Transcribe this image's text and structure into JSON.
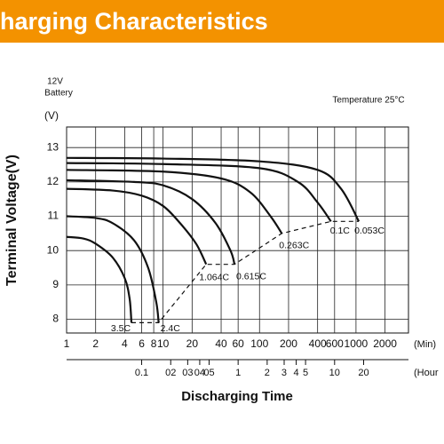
{
  "header": {
    "title": "harging Characteristics"
  },
  "chart_data": {
    "type": "line",
    "unit_label": "(V)",
    "battery_line1": "12V",
    "battery_line2": "Battery",
    "annotation": "Temperature 25°C",
    "y_label": "Terminal Voltage(V)",
    "x_label": "Discharging Time",
    "x_unit": "(Min)",
    "x2_unit": "(Hour",
    "log_x": true,
    "grid": true,
    "color": "#111111",
    "xlim": [
      1,
      3500
    ],
    "ylim": [
      7.6,
      13.6
    ],
    "xticks": [
      1,
      2,
      4,
      6,
      8,
      10,
      20,
      40,
      60,
      100,
      200,
      400,
      600,
      1000,
      2000
    ],
    "yticks": [
      8,
      9,
      10,
      11,
      12,
      13
    ],
    "x2lim": [
      0.016667,
      58.333
    ],
    "x2ticks": [
      0.1,
      {
        "value": 0.2,
        "label": "02"
      },
      {
        "value": 0.3,
        "label": "03"
      },
      {
        "value": 0.4,
        "label": "04"
      },
      {
        "value": 0.5,
        "label": "05"
      },
      1,
      2,
      3,
      4,
      5,
      10,
      20
    ],
    "series": [
      {
        "name": "3.5C",
        "x": [
          1,
          1.5,
          2,
          3,
          4,
          4.5,
          4.7
        ],
        "values": [
          10.4,
          10.35,
          10.2,
          9.8,
          9.2,
          8.6,
          7.9
        ]
      },
      {
        "name": "2.4C",
        "x": [
          1,
          2,
          3,
          5,
          7,
          8.5,
          9
        ],
        "values": [
          11.0,
          10.95,
          10.8,
          10.3,
          9.5,
          8.5,
          7.9
        ]
      },
      {
        "name": "1.064C",
        "x": [
          1,
          3,
          6,
          10,
          15,
          22,
          28
        ],
        "values": [
          11.8,
          11.75,
          11.6,
          11.3,
          10.8,
          10.2,
          9.6
        ]
      },
      {
        "name": "0.615C",
        "x": [
          1,
          5,
          10,
          20,
          35,
          50,
          55
        ],
        "values": [
          12.05,
          12.0,
          11.9,
          11.5,
          10.8,
          10.0,
          9.6
        ]
      },
      {
        "name": "0.263C",
        "x": [
          1,
          10,
          40,
          80,
          130,
          170
        ],
        "values": [
          12.35,
          12.3,
          12.1,
          11.7,
          11.0,
          10.5
        ]
      },
      {
        "name": "0.1C",
        "x": [
          1,
          10,
          100,
          250,
          400,
          550
        ],
        "values": [
          12.55,
          12.52,
          12.4,
          12.0,
          11.4,
          10.85
        ]
      },
      {
        "name": "0.053C",
        "x": [
          1,
          10,
          100,
          400,
          700,
          1070
        ],
        "values": [
          12.7,
          12.68,
          12.6,
          12.35,
          11.8,
          10.85
        ]
      }
    ],
    "end_voltage": {
      "x": [
        4.7,
        9,
        28,
        55,
        170,
        550,
        1070
      ],
      "values": [
        7.9,
        7.9,
        9.6,
        9.6,
        10.5,
        10.85,
        10.85
      ]
    }
  }
}
